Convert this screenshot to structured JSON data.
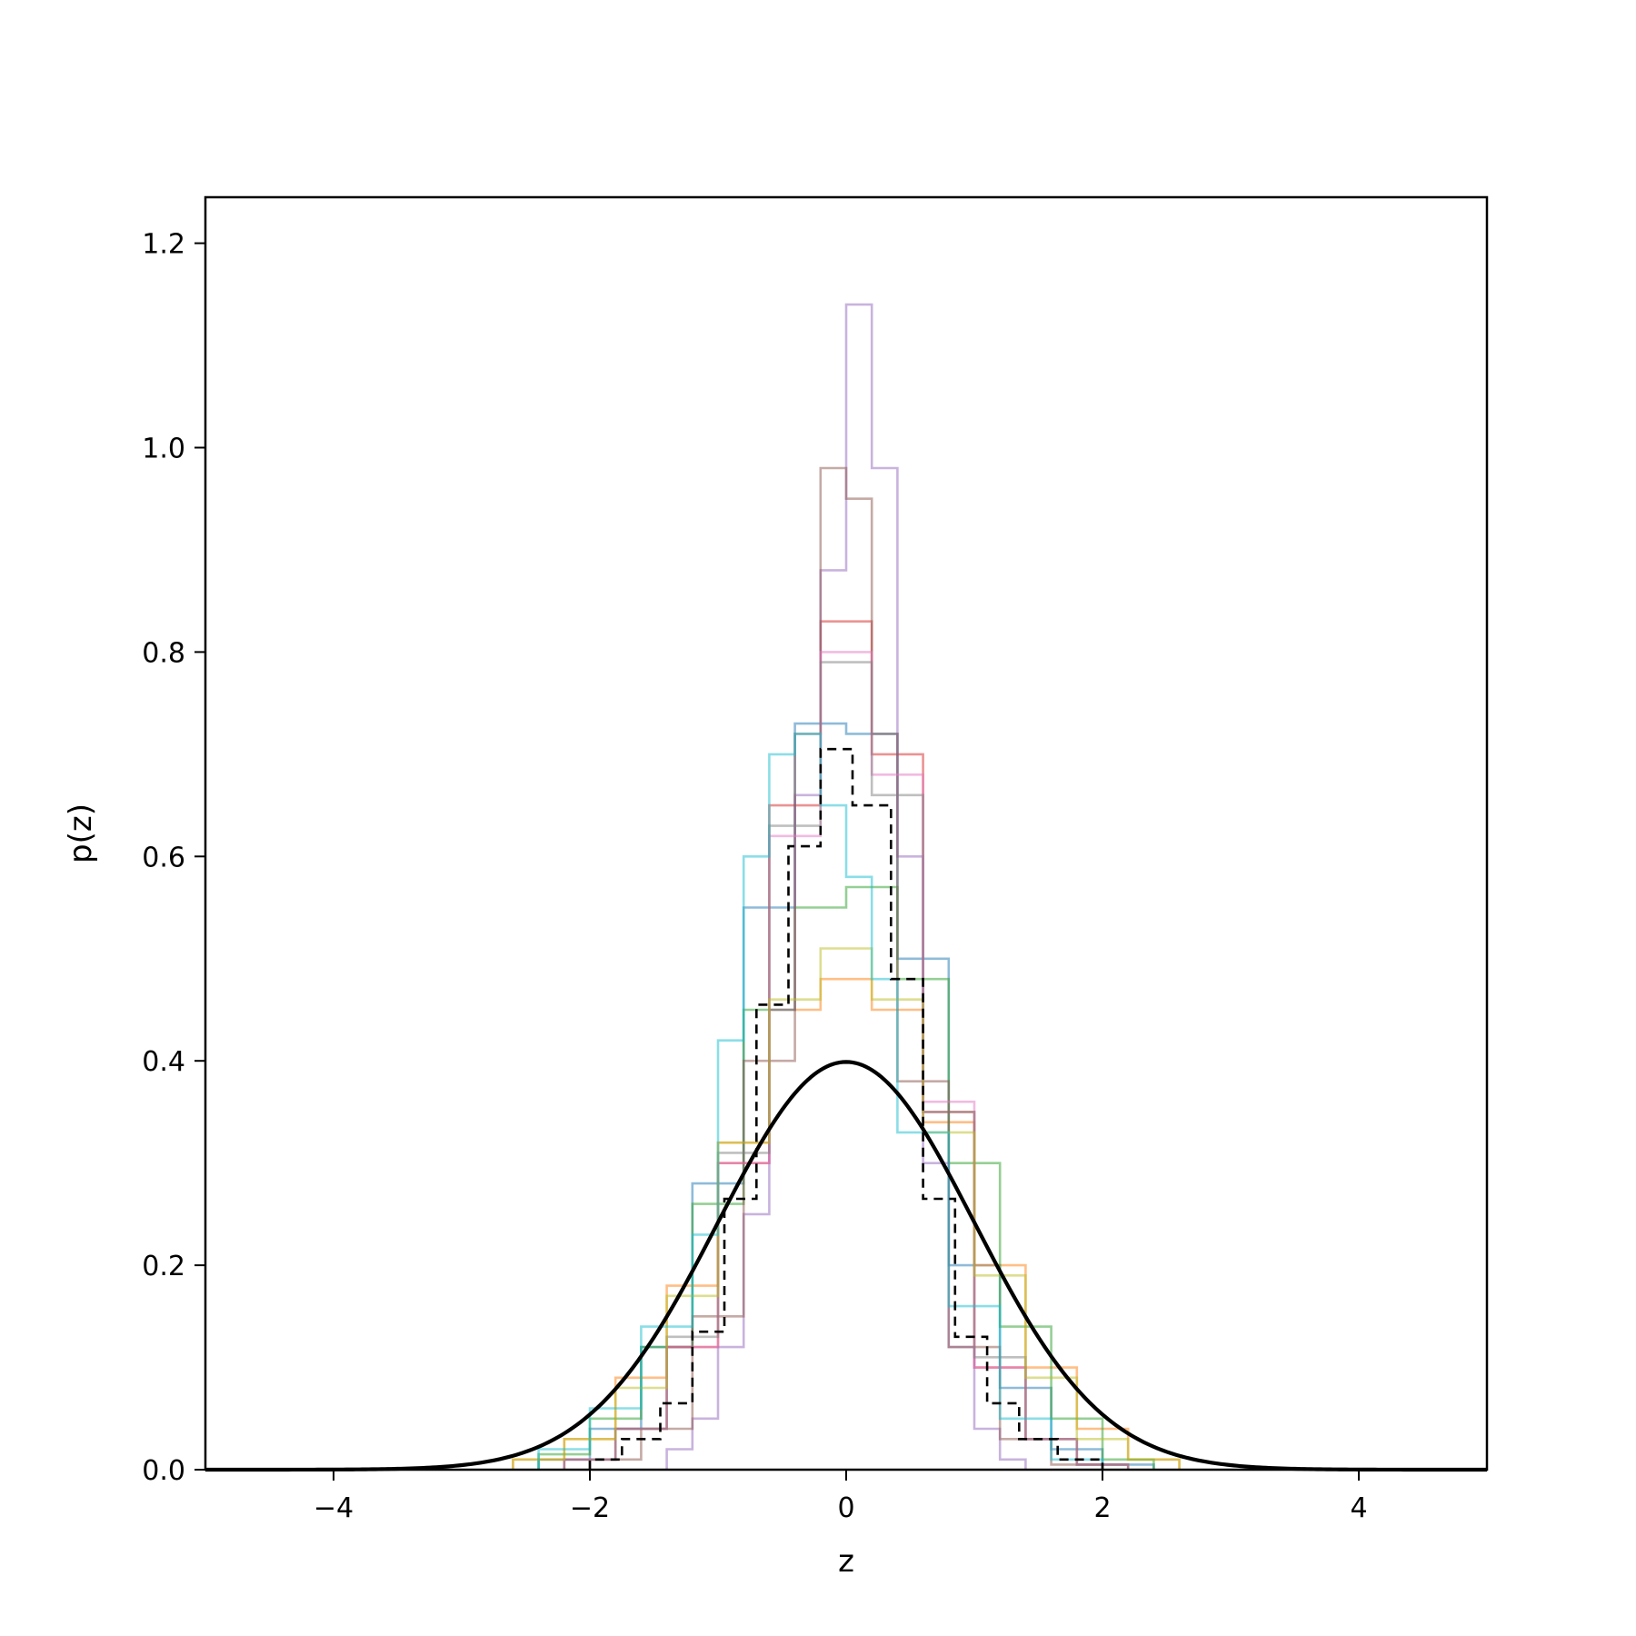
{
  "chart_data": {
    "type": "line",
    "title": "",
    "xlabel": "z",
    "ylabel": "p(z)",
    "xlim": [
      -5,
      5
    ],
    "ylim": [
      0,
      1.245
    ],
    "xticks": [
      -4,
      -2,
      0,
      2,
      4
    ],
    "xtick_labels": [
      "−4",
      "−2",
      "0",
      "2",
      "4"
    ],
    "yticks": [
      0.0,
      0.2,
      0.4,
      0.6,
      0.8,
      1.0,
      1.2
    ],
    "ytick_labels": [
      "0.0",
      "0.2",
      "0.4",
      "0.6",
      "0.8",
      "1.0",
      "1.2"
    ],
    "grid": false,
    "legend": "none",
    "reference_curve": {
      "style": "solid black",
      "mean": 0,
      "std": 1,
      "peak": 0.4
    },
    "series": [
      {
        "color": "#1f77b4",
        "edges": [
          -2.4,
          -2.0,
          -1.6,
          -1.2,
          -0.8,
          -0.4,
          0.0,
          0.4,
          0.8,
          1.2,
          1.6,
          2.0,
          2.4
        ],
        "density": [
          0.01,
          0.04,
          0.12,
          0.28,
          0.55,
          0.73,
          0.72,
          0.5,
          0.2,
          0.08,
          0.02,
          0.005
        ]
      },
      {
        "color": "#ff7f0e",
        "edges": [
          -2.6,
          -2.2,
          -1.8,
          -1.4,
          -1.0,
          -0.6,
          -0.2,
          0.2,
          0.6,
          1.0,
          1.4,
          1.8,
          2.2,
          2.6
        ],
        "density": [
          0.01,
          0.03,
          0.09,
          0.18,
          0.32,
          0.45,
          0.48,
          0.45,
          0.34,
          0.2,
          0.1,
          0.04,
          0.01
        ]
      },
      {
        "color": "#2ca02c",
        "edges": [
          -2.4,
          -2.0,
          -1.6,
          -1.2,
          -0.8,
          -0.4,
          0.0,
          0.4,
          0.8,
          1.2,
          1.6,
          2.0,
          2.4
        ],
        "density": [
          0.015,
          0.05,
          0.12,
          0.26,
          0.45,
          0.55,
          0.57,
          0.48,
          0.3,
          0.14,
          0.05,
          0.01
        ]
      },
      {
        "color": "#d62728",
        "edges": [
          -2.2,
          -1.8,
          -1.4,
          -1.0,
          -0.6,
          -0.2,
          0.2,
          0.6,
          1.0,
          1.4,
          1.8,
          2.2
        ],
        "density": [
          0.01,
          0.04,
          0.12,
          0.3,
          0.65,
          0.83,
          0.7,
          0.35,
          0.1,
          0.03,
          0.005
        ]
      },
      {
        "color": "#9467bd",
        "edges": [
          -1.4,
          -1.2,
          -1.0,
          -0.8,
          -0.6,
          -0.4,
          -0.2,
          0.0,
          0.2,
          0.4,
          0.6,
          0.8,
          1.0,
          1.2,
          1.4
        ],
        "density": [
          0.02,
          0.05,
          0.12,
          0.25,
          0.45,
          0.66,
          0.88,
          1.14,
          0.98,
          0.6,
          0.3,
          0.12,
          0.04,
          0.01
        ]
      },
      {
        "color": "#8c564b",
        "edges": [
          -2.0,
          -1.6,
          -1.2,
          -0.8,
          -0.4,
          -0.2,
          0.0,
          0.2,
          0.4,
          0.8,
          1.2,
          1.6,
          2.0
        ],
        "density": [
          0.01,
          0.04,
          0.15,
          0.4,
          0.72,
          0.98,
          0.95,
          0.72,
          0.38,
          0.12,
          0.03,
          0.005
        ]
      },
      {
        "color": "#e377c2",
        "edges": [
          -2.2,
          -1.8,
          -1.4,
          -1.0,
          -0.6,
          -0.2,
          0.2,
          0.6,
          1.0,
          1.4,
          1.8,
          2.2
        ],
        "density": [
          0.01,
          0.04,
          0.12,
          0.3,
          0.62,
          0.8,
          0.68,
          0.36,
          0.1,
          0.03,
          0.005
        ]
      },
      {
        "color": "#7f7f7f",
        "edges": [
          -2.2,
          -1.8,
          -1.4,
          -1.0,
          -0.6,
          -0.2,
          0.2,
          0.6,
          1.0,
          1.4,
          1.8,
          2.2
        ],
        "density": [
          0.01,
          0.04,
          0.13,
          0.31,
          0.63,
          0.79,
          0.66,
          0.35,
          0.11,
          0.03,
          0.005
        ]
      },
      {
        "color": "#bcbd22",
        "edges": [
          -2.6,
          -2.2,
          -1.8,
          -1.4,
          -1.0,
          -0.6,
          -0.2,
          0.2,
          0.6,
          1.0,
          1.4,
          1.8,
          2.2,
          2.6
        ],
        "density": [
          0.01,
          0.03,
          0.08,
          0.17,
          0.32,
          0.46,
          0.51,
          0.46,
          0.33,
          0.19,
          0.09,
          0.03,
          0.01
        ]
      },
      {
        "color": "#17becf",
        "edges": [
          -2.4,
          -2.0,
          -1.6,
          -1.2,
          -1.0,
          -0.8,
          -0.6,
          -0.4,
          -0.2,
          0.0,
          0.2,
          0.4,
          0.8,
          1.2,
          1.6,
          2.0
        ],
        "density": [
          0.02,
          0.06,
          0.14,
          0.23,
          0.42,
          0.6,
          0.7,
          0.72,
          0.65,
          0.58,
          0.48,
          0.33,
          0.16,
          0.05,
          0.01
        ]
      }
    ],
    "dashed_series": {
      "style": "dashed black",
      "edges": [
        -2.0,
        -1.75,
        -1.45,
        -1.2,
        -0.95,
        -0.7,
        -0.45,
        -0.2,
        0.05,
        0.35,
        0.6,
        0.85,
        1.1,
        1.35,
        1.65,
        2.0
      ],
      "density": [
        0.01,
        0.03,
        0.065,
        0.135,
        0.265,
        0.455,
        0.61,
        0.705,
        0.65,
        0.48,
        0.265,
        0.13,
        0.065,
        0.03,
        0.01
      ]
    },
    "series_opacity": 0.5
  }
}
